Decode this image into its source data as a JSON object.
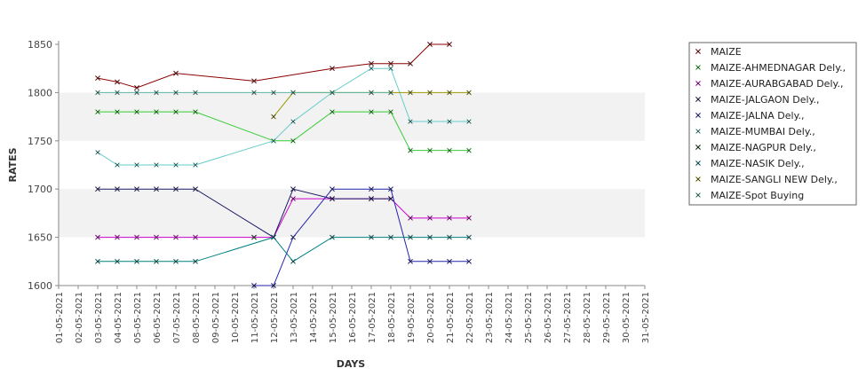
{
  "chart_data": {
    "type": "line",
    "title": "",
    "xlabel": "DAYS",
    "ylabel": "RATES",
    "ylim": [
      1600,
      1850
    ],
    "yticks": [
      1600,
      1650,
      1700,
      1750,
      1800,
      1850
    ],
    "grid": "alternating horizontal bands",
    "legend_position": "right",
    "categories": [
      "01-05-2021",
      "02-05-2021",
      "03-05-2021",
      "04-05-2021",
      "05-05-2021",
      "06-05-2021",
      "07-05-2021",
      "08-05-2021",
      "09-05-2021",
      "10-05-2021",
      "11-05-2021",
      "12-05-2021",
      "13-05-2021",
      "14-05-2021",
      "15-05-2021",
      "16-05-2021",
      "17-05-2021",
      "18-05-2021",
      "19-05-2021",
      "20-05-2021",
      "21-05-2021",
      "22-05-2021",
      "23-05-2021",
      "24-05-2021",
      "25-05-2021",
      "26-05-2021",
      "27-05-2021",
      "28-05-2021",
      "29-05-2021",
      "30-05-2021",
      "31-05-2021"
    ],
    "series": [
      {
        "name": "MAIZE",
        "color": "#8b0000",
        "values": [
          null,
          null,
          1815,
          1811,
          1805,
          null,
          1820,
          null,
          null,
          null,
          1812,
          null,
          null,
          null,
          1825,
          null,
          1830,
          1830,
          1830,
          1850,
          1850,
          null,
          null,
          null,
          null,
          null,
          null,
          null,
          null,
          null,
          null
        ]
      },
      {
        "name": "MAIZE-AHMEDNAGAR Dely.,",
        "color": "#33cc33",
        "values": [
          null,
          null,
          1780,
          1780,
          1780,
          1780,
          1780,
          1780,
          null,
          null,
          null,
          1750,
          1750,
          null,
          1780,
          null,
          1780,
          1780,
          1740,
          1740,
          1740,
          1740,
          null,
          null,
          null,
          null,
          null,
          null,
          null,
          null,
          null
        ]
      },
      {
        "name": "MAIZE-AURABGABAD Dely.,",
        "color": "#cc00cc",
        "values": [
          null,
          null,
          1650,
          1650,
          1650,
          1650,
          1650,
          1650,
          null,
          null,
          null,
          1650,
          1690,
          null,
          1690,
          null,
          1690,
          1690,
          1670,
          1670,
          1670,
          1670,
          null,
          null,
          null,
          null,
          null,
          null,
          null,
          null,
          null
        ]
      },
      {
        "name": "MAIZE-JALGAON Dely.,",
        "color": "#1a1a66",
        "values": [
          null,
          null,
          1700,
          1700,
          1700,
          1700,
          1700,
          1700,
          null,
          null,
          null,
          1650,
          1700,
          null,
          1690,
          null,
          1690,
          1690,
          null,
          null,
          null,
          null,
          null,
          null,
          null,
          null,
          null,
          null,
          null,
          null,
          null
        ]
      },
      {
        "name": "MAIZE-JALNA Dely.,",
        "color": "#2222aa",
        "values": [
          null,
          null,
          null,
          null,
          null,
          null,
          null,
          null,
          null,
          null,
          1600,
          1600,
          1650,
          null,
          1700,
          null,
          1700,
          1700,
          1625,
          1625,
          1625,
          1625,
          null,
          null,
          null,
          null,
          null,
          null,
          null,
          null,
          null
        ]
      },
      {
        "name": "MAIZE-MUMBAI Dely.,",
        "color": "#66cccc",
        "values": [
          null,
          null,
          1738,
          1725,
          1725,
          1725,
          1725,
          1725,
          null,
          null,
          null,
          1750,
          1770,
          null,
          1800,
          null,
          1825,
          1825,
          1770,
          1770,
          1770,
          1770,
          null,
          null,
          null,
          null,
          null,
          null,
          null,
          null,
          null
        ]
      },
      {
        "name": "MAIZE-NAGPUR Dely.,",
        "color": "#0a3a0a",
        "values": [
          null,
          null,
          null,
          null,
          null,
          null,
          null,
          null,
          null,
          null,
          1650,
          null,
          null,
          null,
          null,
          null,
          null,
          null,
          null,
          null,
          null,
          null,
          null,
          null,
          null,
          null,
          null,
          null,
          null,
          null,
          null
        ]
      },
      {
        "name": "MAIZE-NASIK Dely.,",
        "color": "#008080",
        "values": [
          null,
          null,
          1625,
          1625,
          1625,
          1625,
          1625,
          1625,
          null,
          null,
          null,
          1650,
          1625,
          null,
          1650,
          null,
          1650,
          1650,
          1650,
          1650,
          1650,
          1650,
          null,
          null,
          null,
          null,
          null,
          null,
          null,
          null,
          null
        ]
      },
      {
        "name": "MAIZE-SANGLI NEW Dely.,",
        "color": "#999900",
        "values": [
          null,
          null,
          null,
          null,
          null,
          null,
          null,
          null,
          null,
          null,
          null,
          1775,
          1800,
          null,
          1800,
          null,
          1800,
          1800,
          1800,
          1800,
          1800,
          1800,
          null,
          null,
          null,
          null,
          null,
          null,
          null,
          null,
          null
        ]
      },
      {
        "name": "MAIZE-Spot Buying",
        "color": "#5ab4a4",
        "values": [
          null,
          null,
          1800,
          1800,
          1800,
          1800,
          1800,
          1800,
          null,
          null,
          1800,
          1800,
          1800,
          null,
          1800,
          null,
          1800,
          1800,
          null,
          null,
          null,
          null,
          null,
          null,
          null,
          null,
          null,
          null,
          null,
          null,
          null
        ]
      }
    ]
  }
}
